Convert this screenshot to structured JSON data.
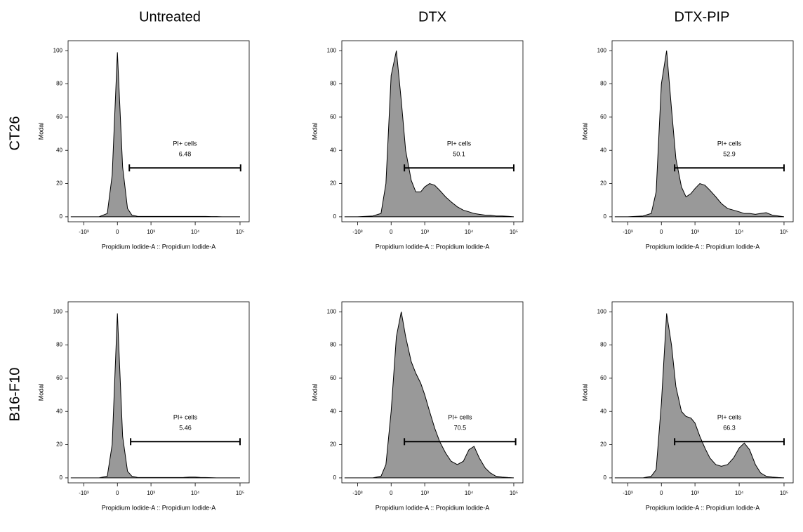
{
  "column_titles": [
    "Untreated",
    "DTX",
    "DTX-PIP"
  ],
  "row_labels": [
    "CT26",
    "B16-F10"
  ],
  "chart_data": [
    {
      "type": "area",
      "ylabel": "Modal",
      "xlabel": "Propidium Iodide-A :: Propidium Iodide-A",
      "xscale": "biexponential",
      "color": "#999999",
      "xlim": [
        -2300,
        160000
      ],
      "ylim": [
        -3,
        106
      ],
      "yticks": [
        0,
        20,
        40,
        60,
        80,
        100
      ],
      "xticks": [
        {
          "value": -1000,
          "label": "-10³"
        },
        0,
        {
          "value": 1000,
          "label": "10³"
        },
        {
          "value": 10000,
          "label": "10⁴"
        },
        {
          "value": 100000,
          "label": "10⁵"
        }
      ],
      "x": [
        -2000,
        -1000,
        -400,
        -200,
        -100,
        0,
        100,
        200,
        300,
        450,
        600,
        800,
        1000,
        1300,
        1700,
        2200,
        3000,
        4000,
        5500,
        7500,
        10000,
        13000,
        17000,
        23000,
        30000,
        40000,
        55000,
        75000,
        100000
      ],
      "values": [
        0,
        0,
        0,
        2,
        25,
        99,
        30,
        5,
        1,
        0.3,
        0.2,
        0.2,
        0.2,
        0.2,
        0.2,
        0.2,
        0.2,
        0.2,
        0.2,
        0.2,
        0.2,
        0.2,
        0.2,
        0.1,
        0.1,
        0,
        0,
        0,
        0
      ],
      "gate": [
        240,
        103000
      ],
      "gate_label": "PI+ cells",
      "gate_value": 6.48
    },
    {
      "type": "area",
      "ylabel": "Modal",
      "xlabel": "Propidium Iodide-A :: Propidium Iodide-A",
      "xscale": "biexponential",
      "color": "#999999",
      "xlim": [
        -2300,
        160000
      ],
      "ylim": [
        -3,
        106
      ],
      "yticks": [
        0,
        20,
        40,
        60,
        80,
        100
      ],
      "xticks": [
        {
          "value": -1000,
          "label": "-10³"
        },
        0,
        {
          "value": 1000,
          "label": "10³"
        },
        {
          "value": 10000,
          "label": "10⁴"
        },
        {
          "value": 100000,
          "label": "10⁵"
        }
      ],
      "x": [
        -2000,
        -1000,
        -400,
        -200,
        -100,
        0,
        100,
        200,
        300,
        450,
        600,
        800,
        1000,
        1300,
        1700,
        2200,
        3000,
        4000,
        5500,
        7500,
        10000,
        13000,
        17000,
        23000,
        30000,
        40000,
        55000,
        75000,
        100000
      ],
      "values": [
        0,
        0,
        0.5,
        2,
        20,
        85,
        100,
        70,
        40,
        22,
        15,
        15,
        18,
        20,
        19,
        16,
        12,
        9,
        6,
        4,
        3,
        2,
        1.5,
        1,
        1,
        0.5,
        0.5,
        0.3,
        0
      ],
      "gate": [
        270,
        100000
      ],
      "gate_label": "PI+ cells",
      "gate_value": 50.1
    },
    {
      "type": "area",
      "ylabel": "Modal",
      "xlabel": "Propidium Iodide-A :: Propidium Iodide-A",
      "xscale": "biexponential",
      "color": "#999999",
      "xlim": [
        -2300,
        160000
      ],
      "ylim": [
        -3,
        106
      ],
      "yticks": [
        0,
        20,
        40,
        60,
        80,
        100
      ],
      "xticks": [
        {
          "value": -1000,
          "label": "-10³"
        },
        0,
        {
          "value": 1000,
          "label": "10³"
        },
        {
          "value": 10000,
          "label": "10⁴"
        },
        {
          "value": 100000,
          "label": "10⁵"
        }
      ],
      "x": [
        -2000,
        -1000,
        -400,
        -200,
        -100,
        0,
        100,
        200,
        300,
        450,
        600,
        800,
        1000,
        1300,
        1700,
        2200,
        3000,
        4000,
        5500,
        7500,
        10000,
        13000,
        17000,
        23000,
        30000,
        40000,
        55000,
        75000,
        100000
      ],
      "values": [
        0,
        0,
        0.5,
        2,
        15,
        80,
        100,
        65,
        35,
        18,
        12,
        14,
        17,
        20,
        19,
        16,
        12,
        8,
        5,
        4,
        3,
        2,
        2,
        1.5,
        2,
        2.5,
        1,
        0.5,
        0
      ],
      "gate": [
        270,
        100000
      ],
      "gate_label": "PI+ cells",
      "gate_value": 52.9
    },
    {
      "type": "area",
      "ylabel": "Modal",
      "xlabel": "Propidium Iodide-A :: Propidium Iodide-A",
      "xscale": "biexponential",
      "color": "#999999",
      "xlim": [
        -2300,
        160000
      ],
      "ylim": [
        -3,
        106
      ],
      "yticks": [
        0,
        20,
        40,
        60,
        80,
        100
      ],
      "xticks": [
        {
          "value": -1000,
          "label": "-10³"
        },
        0,
        {
          "value": 1000,
          "label": "10³"
        },
        {
          "value": 10000,
          "label": "10⁴"
        },
        {
          "value": 100000,
          "label": "10⁵"
        }
      ],
      "x": [
        -2000,
        -1000,
        -400,
        -200,
        -100,
        0,
        100,
        200,
        300,
        450,
        600,
        800,
        1000,
        1300,
        1700,
        2200,
        3000,
        4000,
        5500,
        7500,
        10000,
        13000,
        17000,
        23000,
        30000,
        40000,
        55000,
        75000,
        100000
      ],
      "values": [
        0,
        0,
        0,
        1,
        20,
        99,
        25,
        4,
        1,
        0.3,
        0.2,
        0.2,
        0.2,
        0.2,
        0.2,
        0.2,
        0.2,
        0.2,
        0.3,
        0.5,
        0.5,
        0.3,
        0.2,
        0.1,
        0,
        0,
        0,
        0,
        0
      ],
      "gate": [
        270,
        100000
      ],
      "gate_label": "PI+ cells",
      "gate_value": 5.46
    },
    {
      "type": "area",
      "ylabel": "Modal",
      "xlabel": "Propidium Iodide-A :: Propidium Iodide-A",
      "xscale": "biexponential",
      "color": "#999999",
      "xlim": [
        -2300,
        160000
      ],
      "ylim": [
        -3,
        106
      ],
      "yticks": [
        0,
        20,
        40,
        60,
        80,
        100
      ],
      "xticks": [
        {
          "value": -1000,
          "label": "-10³"
        },
        0,
        {
          "value": 1000,
          "label": "10³"
        },
        {
          "value": 10000,
          "label": "10⁴"
        },
        {
          "value": 100000,
          "label": "10⁵"
        }
      ],
      "x": [
        -2000,
        -1000,
        -400,
        -200,
        -100,
        0,
        100,
        200,
        300,
        450,
        600,
        800,
        1000,
        1300,
        1700,
        2200,
        3000,
        4000,
        5500,
        7500,
        10000,
        13000,
        17000,
        23000,
        30000,
        40000,
        55000,
        75000,
        100000
      ],
      "values": [
        0,
        0,
        0,
        1,
        8,
        40,
        85,
        100,
        85,
        70,
        63,
        57,
        50,
        40,
        30,
        22,
        15,
        10,
        8,
        10,
        17,
        19,
        12,
        6,
        3,
        1,
        0.5,
        0.2,
        0
      ],
      "gate": [
        270,
        110000
      ],
      "gate_label": "PI+ cells",
      "gate_value": 70.5
    },
    {
      "type": "area",
      "ylabel": "Modal",
      "xlabel": "Propidium Iodide-A :: Propidium Iodide-A",
      "xscale": "biexponential",
      "color": "#999999",
      "xlim": [
        -2300,
        160000
      ],
      "ylim": [
        -3,
        106
      ],
      "yticks": [
        0,
        20,
        40,
        60,
        80,
        100
      ],
      "xticks": [
        {
          "value": -1000,
          "label": "-10³"
        },
        0,
        {
          "value": 1000,
          "label": "10³"
        },
        {
          "value": 10000,
          "label": "10⁴"
        },
        {
          "value": 100000,
          "label": "10⁵"
        }
      ],
      "x": [
        -2000,
        -1000,
        -400,
        -200,
        -100,
        0,
        100,
        200,
        300,
        450,
        600,
        800,
        1000,
        1300,
        1700,
        2200,
        3000,
        4000,
        5500,
        7500,
        10000,
        13000,
        17000,
        23000,
        30000,
        40000,
        55000,
        75000,
        100000
      ],
      "values": [
        0,
        0,
        0,
        1,
        5,
        45,
        99,
        80,
        55,
        40,
        37,
        36,
        33,
        25,
        18,
        12,
        8,
        7,
        8,
        12,
        18,
        21,
        17,
        8,
        3,
        1,
        0.5,
        0.2,
        0
      ],
      "gate": [
        270,
        100000
      ],
      "gate_label": "PI+ cells",
      "gate_value": 66.3
    }
  ]
}
